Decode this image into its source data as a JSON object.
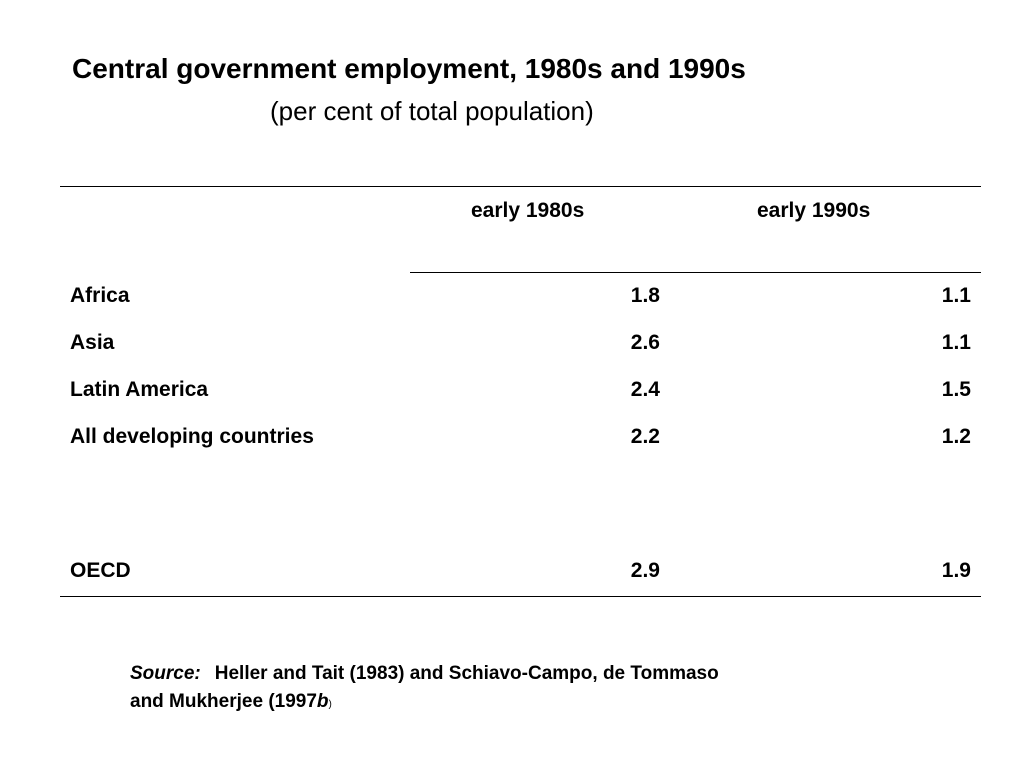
{
  "title": "Central government employment, 1980s and 1990s",
  "subtitle": "(per cent of total population)",
  "table": {
    "columns": [
      "early 1980s",
      "early 1990s"
    ],
    "rows": [
      {
        "label": "Africa",
        "early_1980s": "1.8",
        "early_1990s": "1.1"
      },
      {
        "label": "Asia",
        "early_1980s": "2.6",
        "early_1990s": "1.1"
      },
      {
        "label": "Latin America",
        "early_1980s": "2.4",
        "early_1990s": "1.5"
      },
      {
        "label": "All developing countries",
        "early_1980s": "2.2",
        "early_1990s": "1.2"
      },
      {
        "label": "OECD",
        "early_1980s": "2.9",
        "early_1990s": "1.9"
      }
    ]
  },
  "source": {
    "label": "Source:",
    "text": "Heller and Tait (1983) and Schiavo-Campo, de Tommaso and Mukherjee (1997",
    "suffix": "b",
    "close": ")"
  }
}
